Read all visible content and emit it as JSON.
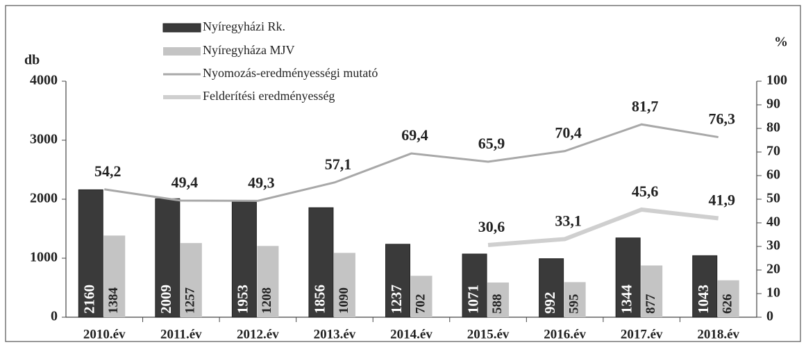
{
  "chart_data": {
    "type": "bar",
    "categories": [
      "2010.év",
      "2011.év",
      "2012.év",
      "2013.év",
      "2014.év",
      "2015.év",
      "2016.év",
      "2017.év",
      "2018.év"
    ],
    "y_label": "db",
    "y2_label": "%",
    "ylim": [
      0,
      4000
    ],
    "yticks": [
      0,
      1000,
      2000,
      3000,
      4000
    ],
    "y2lim": [
      0,
      100
    ],
    "y2ticks": [
      0,
      10,
      20,
      30,
      40,
      50,
      60,
      70,
      80,
      90,
      100
    ],
    "series": [
      {
        "name": "Nyíregyházi Rk.",
        "type": "bar",
        "color": "#3a3a3a",
        "values": [
          2160,
          2009,
          1953,
          1856,
          1237,
          1071,
          992,
          1344,
          1043
        ]
      },
      {
        "name": "Nyíregyháza MJV",
        "type": "bar",
        "color": "#c4c4c4",
        "values": [
          1384,
          1257,
          1208,
          1090,
          702,
          588,
          595,
          877,
          626
        ]
      },
      {
        "name": "Nyomozás-eredményességi mutató",
        "type": "line",
        "axis": "y2",
        "color": "#a8a8a8",
        "values": [
          54.2,
          49.4,
          49.3,
          57.1,
          69.4,
          65.9,
          70.4,
          81.7,
          76.3
        ],
        "value_labels": [
          "54,2",
          "49,4",
          "49,3",
          "57,1",
          "69,4",
          "65,9",
          "70,4",
          "81,7",
          "76,3"
        ]
      },
      {
        "name": "Felderítési eredményesség",
        "type": "line",
        "axis": "y2",
        "color": "#cfcfcf",
        "values": [
          null,
          null,
          null,
          null,
          null,
          30.6,
          33.1,
          45.6,
          41.9
        ],
        "value_labels": [
          null,
          null,
          null,
          null,
          null,
          "30,6",
          "33,1",
          "45,6",
          "41,9"
        ]
      }
    ]
  }
}
